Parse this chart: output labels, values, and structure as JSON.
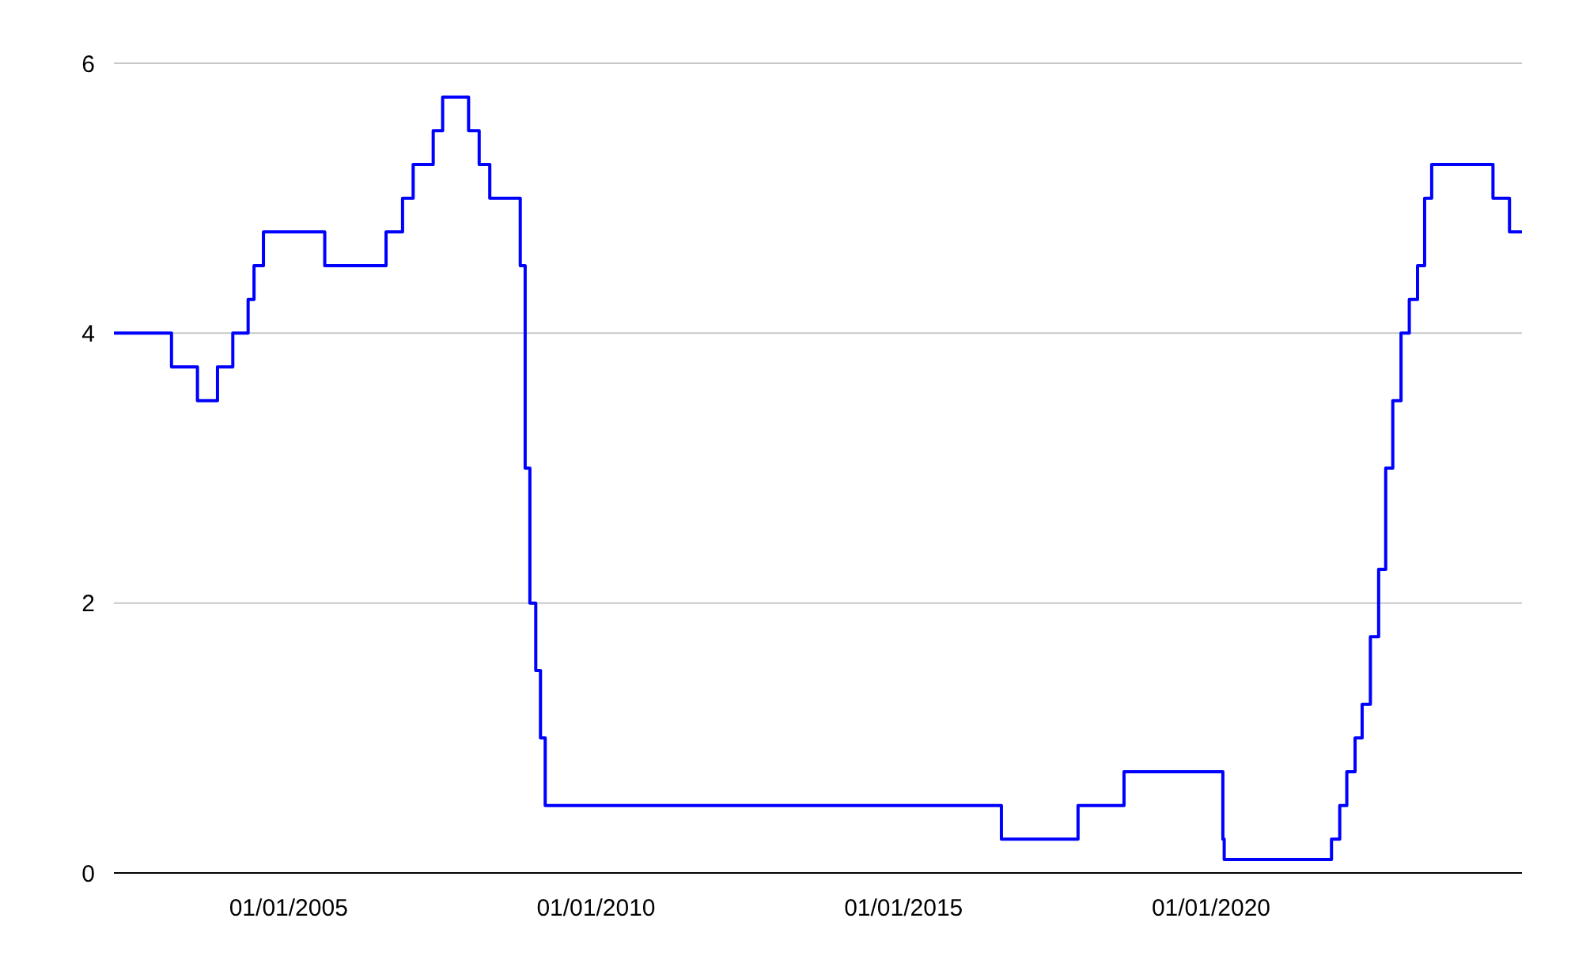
{
  "chart_data": {
    "type": "step",
    "x": [
      "2002-03-01",
      "2003-02-06",
      "2003-07-10",
      "2003-11-06",
      "2004-02-05",
      "2004-05-06",
      "2004-06-10",
      "2004-08-05",
      "2005-08-04",
      "2006-08-03",
      "2006-11-09",
      "2007-01-11",
      "2007-05-10",
      "2007-07-05",
      "2007-12-06",
      "2008-02-07",
      "2008-04-10",
      "2008-10-08",
      "2008-11-06",
      "2008-12-04",
      "2009-01-08",
      "2009-02-05",
      "2009-03-05",
      "2016-08-04",
      "2017-11-02",
      "2018-08-02",
      "2020-03-11",
      "2020-03-19",
      "2021-12-16",
      "2022-02-03",
      "2022-03-17",
      "2022-05-05",
      "2022-06-16",
      "2022-08-04",
      "2022-09-22",
      "2022-11-03",
      "2022-12-15",
      "2023-02-02",
      "2023-03-23",
      "2023-05-11",
      "2023-06-22",
      "2023-08-03",
      "2024-08-01",
      "2024-11-07",
      "2025-01-20"
    ],
    "series": [
      {
        "color": "#0000ff",
        "values": [
          4,
          3.75,
          3.5,
          3.75,
          4,
          4.25,
          4.5,
          4.75,
          4.5,
          4.75,
          5,
          5.25,
          5.5,
          5.75,
          5.5,
          5.25,
          5,
          4.5,
          3,
          2,
          1.5,
          1,
          0.5,
          0.25,
          0.5,
          0.75,
          0.25,
          0.1,
          0.25,
          0.5,
          0.75,
          1,
          1.25,
          1.75,
          2.25,
          3,
          3.5,
          4,
          4.25,
          4.5,
          5,
          5.25,
          5,
          4.75,
          4.75
        ]
      }
    ],
    "xlim": [
      "2002-03-01",
      "2025-01-20"
    ],
    "xticks": [
      {
        "value": "2005-01-01",
        "label": "01/01/2005"
      },
      {
        "value": "2010-01-01",
        "label": "01/01/2010"
      },
      {
        "value": "2015-01-01",
        "label": "01/01/2015"
      },
      {
        "value": "2020-01-01",
        "label": "01/01/2020"
      }
    ],
    "ylim": [
      0,
      6
    ],
    "yticks": [
      0,
      2,
      4,
      6
    ],
    "grid": "y",
    "line_style": "solid"
  }
}
